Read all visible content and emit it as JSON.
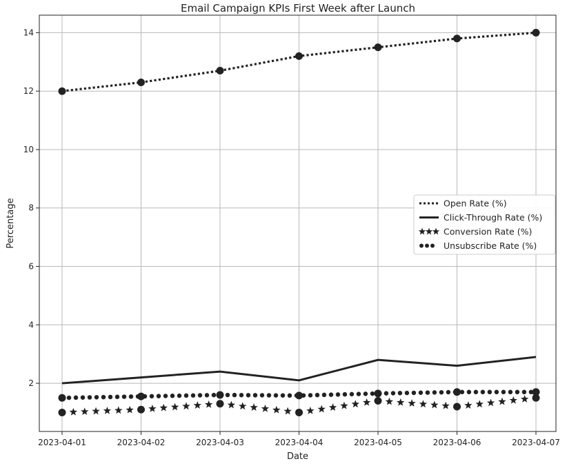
{
  "chart_data": {
    "type": "line",
    "title": "Email Campaign KPIs First Week after Launch",
    "xlabel": "Date",
    "ylabel": "Percentage",
    "categories": [
      "2023-04-01",
      "2023-04-02",
      "2023-04-03",
      "2023-04-04",
      "2023-04-05",
      "2023-04-06",
      "2023-04-07"
    ],
    "ylim": [
      0.35,
      14.6
    ],
    "yticks": [
      2,
      4,
      6,
      8,
      10,
      12,
      14
    ],
    "grid": true,
    "legend_position": "center-right",
    "series": [
      {
        "name": "Open Rate (%)",
        "style": "dotted",
        "marker": "circle",
        "color": "#222222",
        "values": [
          12.0,
          12.3,
          12.7,
          13.2,
          13.5,
          13.8,
          14.0
        ]
      },
      {
        "name": "Click-Through Rate (%)",
        "style": "solid",
        "marker": "none",
        "color": "#222222",
        "values": [
          2.0,
          2.2,
          2.4,
          2.1,
          2.8,
          2.6,
          2.9
        ]
      },
      {
        "name": "Conversion Rate (%)",
        "style": "stars",
        "marker": "circle",
        "color": "#222222",
        "values": [
          1.0,
          1.1,
          1.3,
          1.0,
          1.4,
          1.2,
          1.5
        ]
      },
      {
        "name": "Unsubscribe Rate (%)",
        "style": "dotted-heavy",
        "marker": "circle",
        "color": "#222222",
        "values": [
          1.5,
          1.55,
          1.6,
          1.58,
          1.65,
          1.7,
          1.7
        ]
      }
    ]
  }
}
